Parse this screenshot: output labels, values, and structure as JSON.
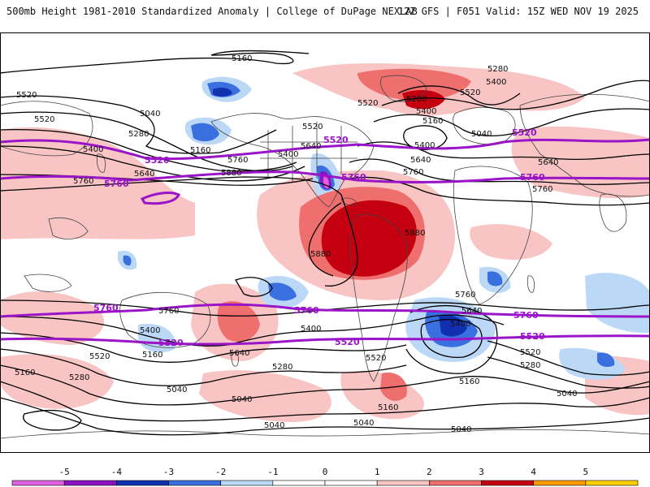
{
  "header": {
    "title_left": "500mb Height 1981-2010 Standardized Anomaly | College of DuPage NEXLAB",
    "title_right": "12Z GFS | F051 Valid: 15Z WED NOV 19 2025"
  },
  "map": {
    "contour_labels": [
      "5160",
      "5280",
      "5400",
      "5520",
      "5040",
      "5520",
      "5280",
      "5400",
      "5160",
      "5640",
      "5760",
      "5880",
      "5520",
      "5640",
      "5400",
      "5520",
      "5760",
      "5880",
      "5400",
      "5640",
      "5760",
      "5760",
      "5640",
      "5520",
      "5400",
      "5280",
      "5160",
      "5040",
      "5880",
      "5760",
      "5400",
      "5520",
      "5160",
      "5280",
      "5040",
      "5160",
      "5040",
      "5640",
      "5760",
      "5400",
      "5520",
      "5160",
      "5280",
      "5040",
      "5040",
      "5160",
      "5040",
      "5640",
      "5400",
      "5520",
      "5280",
      "5040"
    ],
    "purple_labels": [
      "5520",
      "5760",
      "5520",
      "5760",
      "5520",
      "5760",
      "5760",
      "5760",
      "5760",
      "5520",
      "5520",
      "5520"
    ],
    "colors": {
      "contour": "#000000",
      "purple_contour": "#9a14c8",
      "coast": "#444444"
    }
  },
  "colorbar": {
    "ticks": [
      "-5",
      "-4",
      "-3",
      "-2",
      "-1",
      "0",
      "1",
      "2",
      "3",
      "4",
      "5"
    ],
    "colors": [
      "#e060e0",
      "#8a12c0",
      "#1030b0",
      "#3a6fe0",
      "#bcd8f7",
      "#ffffff",
      "#ffffff",
      "#f8c4c4",
      "#ef6f6f",
      "#c40010",
      "#ff9a00",
      "#ffd000"
    ]
  }
}
